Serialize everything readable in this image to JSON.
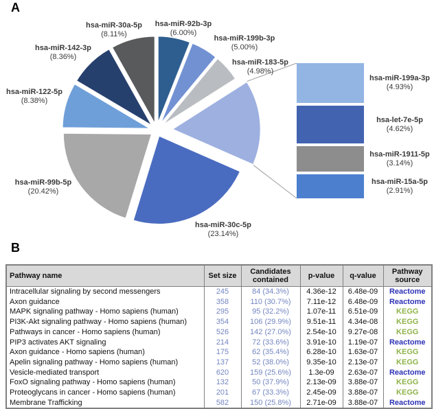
{
  "panels": {
    "a_label": "A",
    "b_label": "B"
  },
  "chart_data": [
    {
      "type": "pie",
      "title": "",
      "unit": "percent",
      "note": "slices listed clockwise from 12 o'clock; unnamed slice is the exploded group detailed in breakout bars",
      "slices": [
        {
          "name": "hsa-miR-92b-3p",
          "value": 6.0,
          "pct_label": "(6.00%)",
          "color": "#2E5E90"
        },
        {
          "name": "hsa-miR-199b-3p",
          "value": 5.0,
          "pct_label": "(5.00%)",
          "color": "#7291D3"
        },
        {
          "name": "hsa-miR-183-5p",
          "value": 4.98,
          "pct_label": "(4.98%)",
          "color": "#B9BCC0"
        },
        {
          "name": "",
          "value": 15.6,
          "pct_label": "",
          "color": "#9DB0E0",
          "exploded": true,
          "is_breakout_group": true
        },
        {
          "name": "hsa-miR-30c-5p",
          "value": 23.14,
          "pct_label": "(23.14%)",
          "color": "#4A6CC0"
        },
        {
          "name": "hsa-miR-99b-5p",
          "value": 20.42,
          "pct_label": "(20.42%)",
          "color": "#A8A8A8"
        },
        {
          "name": "hsa-miR-122-5p",
          "value": 8.38,
          "pct_label": "(8.38%)",
          "color": "#6F9FD9"
        },
        {
          "name": "hsa-miR-142-3p",
          "value": 8.36,
          "pct_label": "(8.36%)",
          "color": "#26406E"
        },
        {
          "name": "hsa-miR-30a-5p",
          "value": 8.11,
          "pct_label": "(8.11%)",
          "color": "#595A5C"
        }
      ],
      "breakout": [
        {
          "name": "hsa-miR-199a-3p",
          "value": 4.93,
          "pct_label": "(4.93%)",
          "color": "#92B5E3"
        },
        {
          "name": "hsa-let-7e-5p",
          "value": 4.62,
          "pct_label": "(4.62%)",
          "color": "#4263B0"
        },
        {
          "name": "hsa-miR-1911-5p",
          "value": 3.14,
          "pct_label": "(3.14%)",
          "color": "#8D8D8D"
        },
        {
          "name": "hsa-miR-15a-5p",
          "value": 2.91,
          "pct_label": "(2.91%)",
          "color": "#4C80CE"
        }
      ],
      "connector_color": "#9c9c9c"
    },
    {
      "type": "table",
      "headers": [
        "Pathway name",
        "Set size",
        "Candidates contained",
        "p-value",
        "q-value",
        "Pathway source"
      ],
      "value_color": "#7386C1",
      "source_colors": {
        "Reactome": "#2D31B5",
        "KEGG": "#8FB348"
      },
      "rows": [
        {
          "pathway": "Intracellular signaling by second messengers",
          "set_size": "245",
          "candidates": "84 (34.3%)",
          "p": "4.36e-12",
          "q": "6.48e-09",
          "source": "Reactome"
        },
        {
          "pathway": "Axon guidance",
          "set_size": "358",
          "candidates": "110 (30.7%)",
          "p": "7.11e-12",
          "q": "6.48e-09",
          "source": "Reactome"
        },
        {
          "pathway": "MAPK signaling pathway - Homo sapiens (human)",
          "set_size": "295",
          "candidates": "95 (32.2%)",
          "p": "1.07e-11",
          "q": "6.51e-09",
          "source": "KEGG"
        },
        {
          "pathway": "PI3K-Akt signaling pathway - Homo sapiens (human)",
          "set_size": "354",
          "candidates": "106 (29.9%)",
          "p": "9.51e-11",
          "q": "4.34e-08",
          "source": "KEGG"
        },
        {
          "pathway": "Pathways in cancer - Homo sapiens (human)",
          "set_size": "526",
          "candidates": "142 (27.0%)",
          "p": "2.54e-10",
          "q": "9.27e-08",
          "source": "KEGG"
        },
        {
          "pathway": "PIP3 activates AKT signaling",
          "set_size": "214",
          "candidates": "72 (33.6%)",
          "p": "3.91e-10",
          "q": "1.19e-07",
          "source": "Reactome"
        },
        {
          "pathway": "Axon guidance - Homo sapiens (human)",
          "set_size": "175",
          "candidates": "62 (35.4%)",
          "p": "6.28e-10",
          "q": "1.63e-07",
          "source": "KEGG"
        },
        {
          "pathway": "Apelin signaling pathway - Homo sapiens (human)",
          "set_size": "137",
          "candidates": "52 (38.0%)",
          "p": "9.35e-10",
          "q": "2.13e-07",
          "source": "KEGG"
        },
        {
          "pathway": "Vesicle-mediated transport",
          "set_size": "620",
          "candidates": "159 (25.6%)",
          "p": "1.3e-09",
          "q": "2.63e-07",
          "source": "Reactome"
        },
        {
          "pathway": "FoxO signaling pathway - Homo sapiens (human)",
          "set_size": "132",
          "candidates": "50 (37.9%)",
          "p": "2.13e-09",
          "q": "3.88e-07",
          "source": "KEGG"
        },
        {
          "pathway": "Proteoglycans in cancer - Homo sapiens (human)",
          "set_size": "201",
          "candidates": "67 (33.3%)",
          "p": "2.45e-09",
          "q": "3.88e-07",
          "source": "KEGG"
        },
        {
          "pathway": "Membrane Trafficking",
          "set_size": "582",
          "candidates": "150 (25.8%)",
          "p": "2.71e-09",
          "q": "3.88e-07",
          "source": "Reactome"
        }
      ]
    }
  ]
}
